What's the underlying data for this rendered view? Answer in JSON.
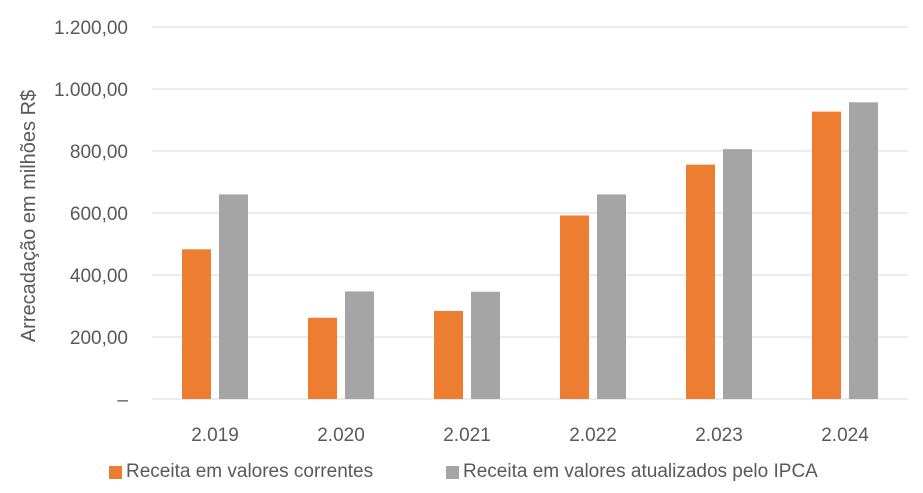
{
  "chart_data": {
    "type": "bar",
    "ylabel": "Arrecadação em milhões R$",
    "categories": [
      "2.019",
      "2.020",
      "2.021",
      "2.022",
      "2.023",
      "2.024"
    ],
    "series": [
      {
        "name": "Receita em valores correntes",
        "color": "#ED7D31",
        "values": [
          483,
          262,
          284,
          592,
          756,
          927
        ]
      },
      {
        "name": "Receita em valores atualizados pelo IPCA",
        "color": "#A5A5A5",
        "values": [
          660,
          347,
          346,
          660,
          806,
          957
        ]
      }
    ],
    "ylim": [
      0,
      1200
    ],
    "yticks": [
      {
        "value": 0,
        "label": "–"
      },
      {
        "value": 200,
        "label": "200,00"
      },
      {
        "value": 400,
        "label": "400,00"
      },
      {
        "value": 600,
        "label": "600,00"
      },
      {
        "value": 800,
        "label": "800,00"
      },
      {
        "value": 1000,
        "label": "1.000,00"
      },
      {
        "value": 1200,
        "label": "1.200,00"
      }
    ],
    "grid": true,
    "legend": "bottom"
  }
}
